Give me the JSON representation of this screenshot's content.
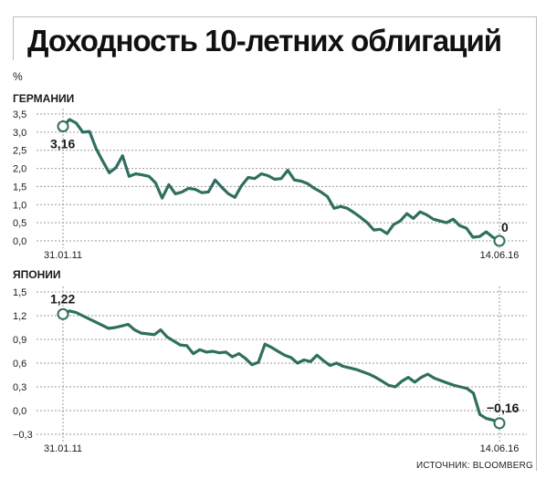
{
  "title": "Доходность 10-летних облигаций",
  "source": "ИСТОЧНИК: BLOOMBERG",
  "unit": "%",
  "colors": {
    "line": "#2f6f5f",
    "grid": "#9a9a9a",
    "text": "#1a1a1a"
  },
  "chart_data": [
    {
      "type": "line",
      "name": "ГЕРМАНИИ",
      "ylim": [
        0,
        3.5
      ],
      "yticks": [
        "0,0",
        "0,5",
        "1,0",
        "1,5",
        "2,0",
        "2,5",
        "3,0",
        "3,5"
      ],
      "x_start_label": "31.01.11",
      "x_end_label": "14.06.16",
      "start_value_label": "3,16",
      "end_value_label": "0",
      "values": [
        3.16,
        3.35,
        3.25,
        3.0,
        3.02,
        2.55,
        2.2,
        1.88,
        2.02,
        2.35,
        1.78,
        1.85,
        1.82,
        1.78,
        1.6,
        1.18,
        1.55,
        1.3,
        1.35,
        1.45,
        1.42,
        1.33,
        1.35,
        1.68,
        1.48,
        1.3,
        1.2,
        1.52,
        1.75,
        1.72,
        1.85,
        1.8,
        1.7,
        1.72,
        1.95,
        1.68,
        1.65,
        1.58,
        1.45,
        1.35,
        1.22,
        0.9,
        0.95,
        0.9,
        0.78,
        0.65,
        0.5,
        0.3,
        0.32,
        0.2,
        0.45,
        0.55,
        0.75,
        0.62,
        0.8,
        0.72,
        0.6,
        0.55,
        0.5,
        0.6,
        0.42,
        0.35,
        0.1,
        0.12,
        0.25,
        0.1,
        0.0
      ]
    },
    {
      "type": "line",
      "name": "ЯПОНИИ",
      "ylim": [
        -0.3,
        1.5
      ],
      "yticks": [
        "−0,3",
        "0,0",
        "0,3",
        "0,6",
        "0,9",
        "1,2",
        "1,5"
      ],
      "x_start_label": "31.01.11",
      "x_end_label": "14.06.16",
      "start_value_label": "1,22",
      "end_value_label": "−0,16",
      "values": [
        1.22,
        1.26,
        1.24,
        1.2,
        1.16,
        1.12,
        1.08,
        1.04,
        1.05,
        1.07,
        1.09,
        1.02,
        0.98,
        0.97,
        0.96,
        1.02,
        0.93,
        0.88,
        0.83,
        0.82,
        0.72,
        0.77,
        0.74,
        0.75,
        0.73,
        0.74,
        0.68,
        0.72,
        0.66,
        0.58,
        0.61,
        0.84,
        0.8,
        0.75,
        0.7,
        0.67,
        0.6,
        0.64,
        0.62,
        0.7,
        0.63,
        0.57,
        0.6,
        0.56,
        0.54,
        0.52,
        0.49,
        0.46,
        0.42,
        0.37,
        0.32,
        0.3,
        0.37,
        0.42,
        0.36,
        0.42,
        0.46,
        0.41,
        0.38,
        0.35,
        0.32,
        0.3,
        0.28,
        0.22,
        -0.05,
        -0.1,
        -0.12,
        -0.16
      ]
    }
  ]
}
